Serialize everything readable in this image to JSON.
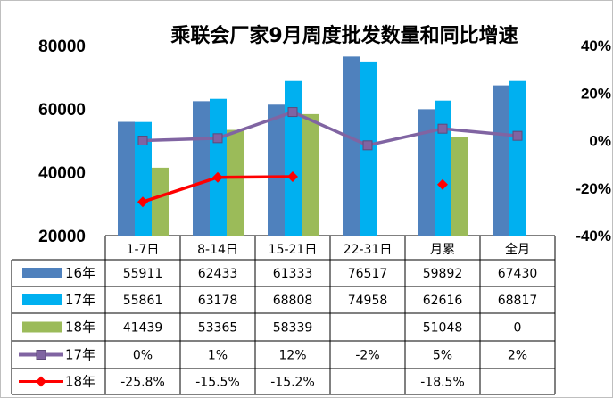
{
  "chart_data": {
    "type": "bar",
    "title": "乘联会厂家9月周度批发数量和同比增速",
    "categories": [
      "1-7日",
      "8-14日",
      "15-21日",
      "22-31日",
      "月累",
      "全月"
    ],
    "ylim": [
      20000,
      80000
    ],
    "yticks": [
      "80000",
      "60000",
      "40000",
      "20000"
    ],
    "y2lim": [
      -40,
      40
    ],
    "y2ticks": [
      "40%",
      "20%",
      "0%",
      "-20%",
      "-40%"
    ],
    "series": [
      {
        "name": "16年",
        "kind": "bar",
        "color": "#4f81bd",
        "values": [
          55911,
          62433,
          61333,
          76517,
          59892,
          67430
        ],
        "labels": [
          "55911",
          "62433",
          "61333",
          "76517",
          "59892",
          "67430"
        ]
      },
      {
        "name": "17年",
        "kind": "bar",
        "color": "#00b0f0",
        "values": [
          55861,
          63178,
          68808,
          74958,
          62616,
          68817
        ],
        "labels": [
          "55861",
          "63178",
          "68808",
          "74958",
          "62616",
          "68817"
        ]
      },
      {
        "name": "18年",
        "kind": "bar",
        "color": "#9bbb59",
        "values": [
          41439,
          53365,
          58339,
          null,
          51048,
          0
        ],
        "labels": [
          "41439",
          "53365",
          "58339",
          "",
          "51048",
          "0"
        ]
      },
      {
        "name": "17年",
        "kind": "line",
        "axis": "right",
        "color": "#8064a2",
        "values": [
          0,
          1,
          12,
          -2,
          5,
          2
        ],
        "labels": [
          "0%",
          "1%",
          "12%",
          "-2%",
          "5%",
          "2%"
        ]
      },
      {
        "name": "18年",
        "kind": "line",
        "axis": "right",
        "color": "#ff0000",
        "values": [
          -25.8,
          -15.5,
          -15.2,
          null,
          -18.5,
          null
        ],
        "labels": [
          "-25.8%",
          "-15.5%",
          "-15.2%",
          "",
          "-18.5%",
          ""
        ]
      }
    ]
  }
}
